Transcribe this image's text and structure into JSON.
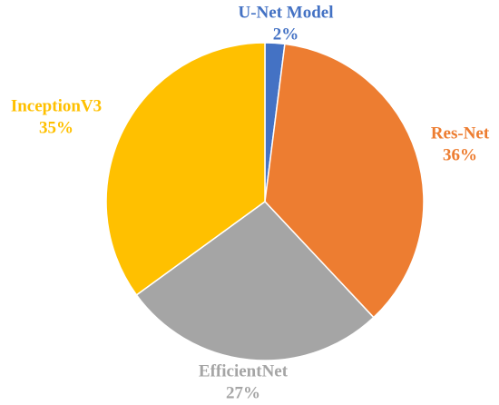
{
  "chart_data": {
    "type": "pie",
    "categories": [
      "U-Net Model",
      "Res-Net",
      "EfficientNet",
      "InceptionV3"
    ],
    "values": [
      2,
      36,
      27,
      35
    ],
    "value_labels": [
      "2%",
      "36%",
      "27%",
      "35%"
    ],
    "colors": [
      "#4472c4",
      "#ed7d31",
      "#a5a5a5",
      "#ffc000"
    ]
  }
}
